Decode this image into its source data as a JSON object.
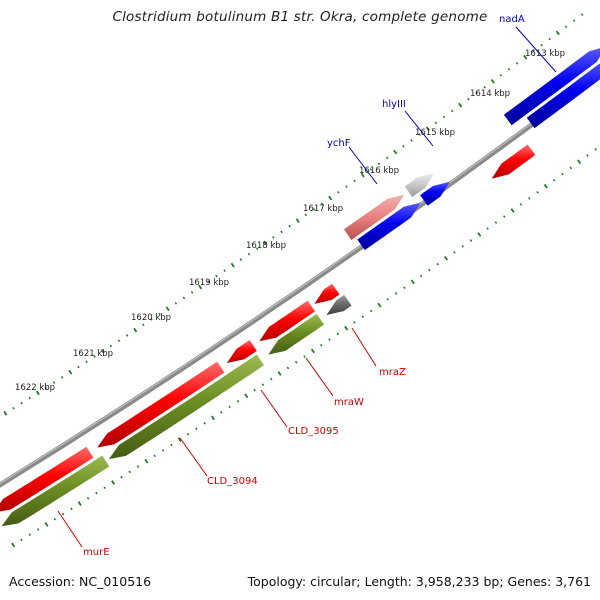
{
  "title": "Clostridium botulinum B1 str. Okra, complete genome",
  "footer": {
    "accession": "Accession: NC_010516",
    "summary": "Topology: circular; Length: 3,958,233 bp; Genes: 3,761"
  },
  "colors": {
    "backbone": "#8a8a8a",
    "ticks": "#1e7f1e",
    "gene_red": "#ff0000",
    "gene_blue": "#0000ee",
    "gene_green": "#6b8e23",
    "gene_gray_light": "#c8c8c8",
    "gene_gray_dark": "#666666",
    "gene_pink": "#e88080",
    "label_red": "#cc0000",
    "label_blue": "#0000cc"
  },
  "kbp_labels": [
    "1613 kbp",
    "1614 kbp",
    "1615 kbp",
    "1616 kbp",
    "1617 kbp",
    "1618 kbp",
    "1619 kbp",
    "1620 kbp",
    "1621 kbp",
    "1622 kbp"
  ],
  "gene_labels": [
    "nadA",
    "hlyIII",
    "ychF",
    "mraZ",
    "mraW",
    "CLD_3095",
    "CLD_3094",
    "murE"
  ]
}
